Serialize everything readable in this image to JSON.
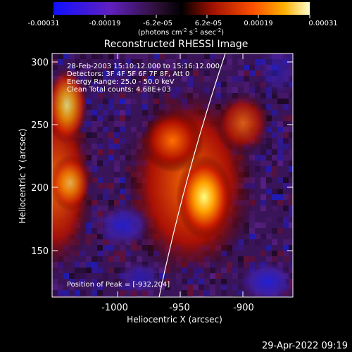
{
  "colorbar": {
    "tick_labels": [
      "-0.00031",
      "-0.00019",
      "-6.2e-05",
      "6.2e-05",
      "0.00019",
      "0.00031"
    ],
    "unit_main": "(photons cm",
    "unit_sup1": "-2",
    "unit_mid": " s",
    "unit_sup2": "-1",
    "unit_end": " asec",
    "unit_sup3": "-2",
    "unit_close": ")"
  },
  "image": {
    "title": "Reconstructed RHESSI Image",
    "annotations": [
      "28-Feb-2003 15:10:12.000 to 15:16:12.000",
      "Detectors: 3F 4F 5F 6F 7F 8F, Att 0",
      "Energy Range: 25.0 - 50.0 keV",
      "Clean     Total counts: 4.68E+03"
    ],
    "peak_label": "Position of Peak = [-932,204]",
    "x_axis": {
      "label": "Heliocentric X (arcsec)",
      "tick_labels": [
        "-1000",
        "-950",
        "-900"
      ]
    },
    "y_axis": {
      "label": "Heliocentric Y (arcsec)",
      "tick_labels": [
        "300",
        "250",
        "200",
        "150"
      ]
    }
  },
  "footer": {
    "timestamp": "29-Apr-2022 09:19"
  },
  "colors": {
    "background": "#000000",
    "text": "#ffffff"
  }
}
